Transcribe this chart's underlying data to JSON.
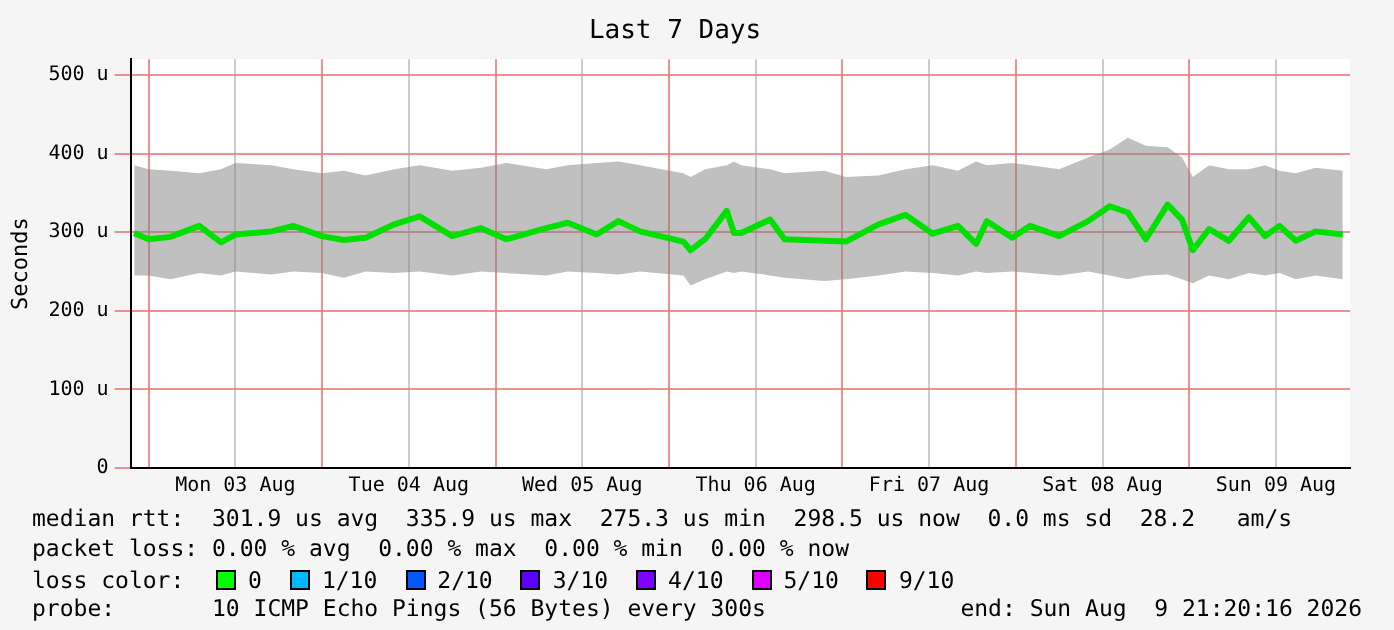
{
  "chart_data": {
    "type": "line",
    "title": "Last 7 Days",
    "ylabel": "Seconds",
    "xlim": [
      "2026-08-02T21:30",
      "2026-08-09T22:15"
    ],
    "xticks": [
      {
        "value": "2026-08-03T00:00",
        "label": null
      },
      {
        "value": "2026-08-03T12:00",
        "label": "Mon 03 Aug"
      },
      {
        "value": "2026-08-04T00:00",
        "label": null
      },
      {
        "value": "2026-08-04T12:00",
        "label": "Tue 04 Aug"
      },
      {
        "value": "2026-08-05T00:00",
        "label": null
      },
      {
        "value": "2026-08-05T12:00",
        "label": "Wed 05 Aug"
      },
      {
        "value": "2026-08-06T00:00",
        "label": null
      },
      {
        "value": "2026-08-06T12:00",
        "label": "Thu 06 Aug"
      },
      {
        "value": "2026-08-07T00:00",
        "label": null
      },
      {
        "value": "2026-08-07T12:00",
        "label": "Fri 07 Aug"
      },
      {
        "value": "2026-08-08T00:00",
        "label": null
      },
      {
        "value": "2026-08-08T12:00",
        "label": "Sat 08 Aug"
      },
      {
        "value": "2026-08-09T00:00",
        "label": null
      },
      {
        "value": "2026-08-09T12:00",
        "label": "Sun 09 Aug"
      }
    ],
    "ylim": [
      0,
      520
    ],
    "yticks": [
      0,
      {
        "value": 100,
        "label": "100 u"
      },
      {
        "value": 200,
        "label": "200 u"
      },
      {
        "value": 300,
        "label": "300 u"
      },
      {
        "value": 400,
        "label": "400 u"
      },
      {
        "value": 500,
        "label": "500 u"
      }
    ],
    "grid": true,
    "legend": false,
    "marker": "none",
    "line_style": "solid",
    "x": [
      "2026-08-02T22:00",
      "2026-08-03T00:00",
      "2026-08-03T03:00",
      "2026-08-03T07:00",
      "2026-08-03T10:00",
      "2026-08-03T12:00",
      "2026-08-03T17:00",
      "2026-08-03T20:00",
      "2026-08-04T00:00",
      "2026-08-04T03:00",
      "2026-08-04T06:00",
      "2026-08-04T10:00",
      "2026-08-04T13:30",
      "2026-08-04T18:00",
      "2026-08-04T22:00",
      "2026-08-05T01:30",
      "2026-08-05T07:00",
      "2026-08-05T10:00",
      "2026-08-05T14:00",
      "2026-08-05T17:00",
      "2026-08-05T20:00",
      "2026-08-06T02:00",
      "2026-08-06T03:00",
      "2026-08-06T05:00",
      "2026-08-06T08:00",
      "2026-08-06T09:00",
      "2026-08-06T10:00",
      "2026-08-06T14:00",
      "2026-08-06T16:00",
      "2026-08-06T21:30",
      "2026-08-07T00:30",
      "2026-08-07T05:00",
      "2026-08-07T08:45",
      "2026-08-07T12:30",
      "2026-08-07T16:00",
      "2026-08-07T18:30",
      "2026-08-07T20:00",
      "2026-08-07T23:30",
      "2026-08-08T02:00",
      "2026-08-08T06:00",
      "2026-08-08T10:00",
      "2026-08-08T13:00",
      "2026-08-08T15:30",
      "2026-08-08T18:00",
      "2026-08-08T21:00",
      "2026-08-08T23:00",
      "2026-08-09T00:30",
      "2026-08-09T02:45",
      "2026-08-09T05:30",
      "2026-08-09T08:15",
      "2026-08-09T10:30",
      "2026-08-09T12:30",
      "2026-08-09T14:45",
      "2026-08-09T17:30",
      "2026-08-09T21:15"
    ],
    "series": [
      {
        "color": "#00e000",
        "values": [
          299,
          291,
          294,
          308,
          287,
          297,
          301,
          308,
          295,
          290,
          293,
          310,
          320,
          295,
          305,
          291,
          305,
          312,
          297,
          314,
          301,
          288,
          277,
          291,
          327,
          299,
          299,
          316,
          291,
          289,
          288,
          310,
          322,
          298,
          308,
          285,
          314,
          293,
          308,
          295,
          314,
          333,
          325,
          291,
          335,
          316,
          277,
          304,
          289,
          319,
          295,
          308,
          289,
          301,
          297
        ],
        "lower": [
          245,
          245,
          240,
          248,
          245,
          250,
          246,
          250,
          248,
          242,
          250,
          248,
          250,
          245,
          250,
          248,
          245,
          250,
          248,
          246,
          250,
          245,
          232,
          240,
          250,
          248,
          250,
          245,
          242,
          238,
          240,
          245,
          250,
          248,
          245,
          250,
          248,
          250,
          248,
          245,
          250,
          245,
          240,
          245,
          246,
          240,
          235,
          245,
          240,
          248,
          245,
          248,
          240,
          245,
          240
        ],
        "upper": [
          385,
          380,
          378,
          375,
          380,
          388,
          385,
          380,
          375,
          378,
          372,
          380,
          385,
          378,
          382,
          388,
          380,
          385,
          388,
          390,
          385,
          375,
          370,
          380,
          385,
          390,
          385,
          380,
          375,
          378,
          370,
          372,
          380,
          385,
          378,
          390,
          385,
          388,
          385,
          380,
          395,
          405,
          420,
          410,
          408,
          395,
          370,
          385,
          380,
          380,
          385,
          378,
          375,
          382,
          378
        ]
      }
    ],
    "annotations": [
      "median rtt:  301.9 us avg  335.9 us max  275.3 us min  298.5 us now  0.0 ms sd  28.2   am/s",
      "packet loss: 0.00 % avg  0.00 % max  0.00 % min  0.00 % now",
      "loss color:",
      "0",
      "1/10",
      "2/10",
      "3/10",
      "4/10",
      "5/10",
      "9/10",
      "probe:       10 ICMP Echo Pings (56 Bytes) every 300s",
      "end: Sun Aug  9 21:20:16 2026"
    ]
  }
}
